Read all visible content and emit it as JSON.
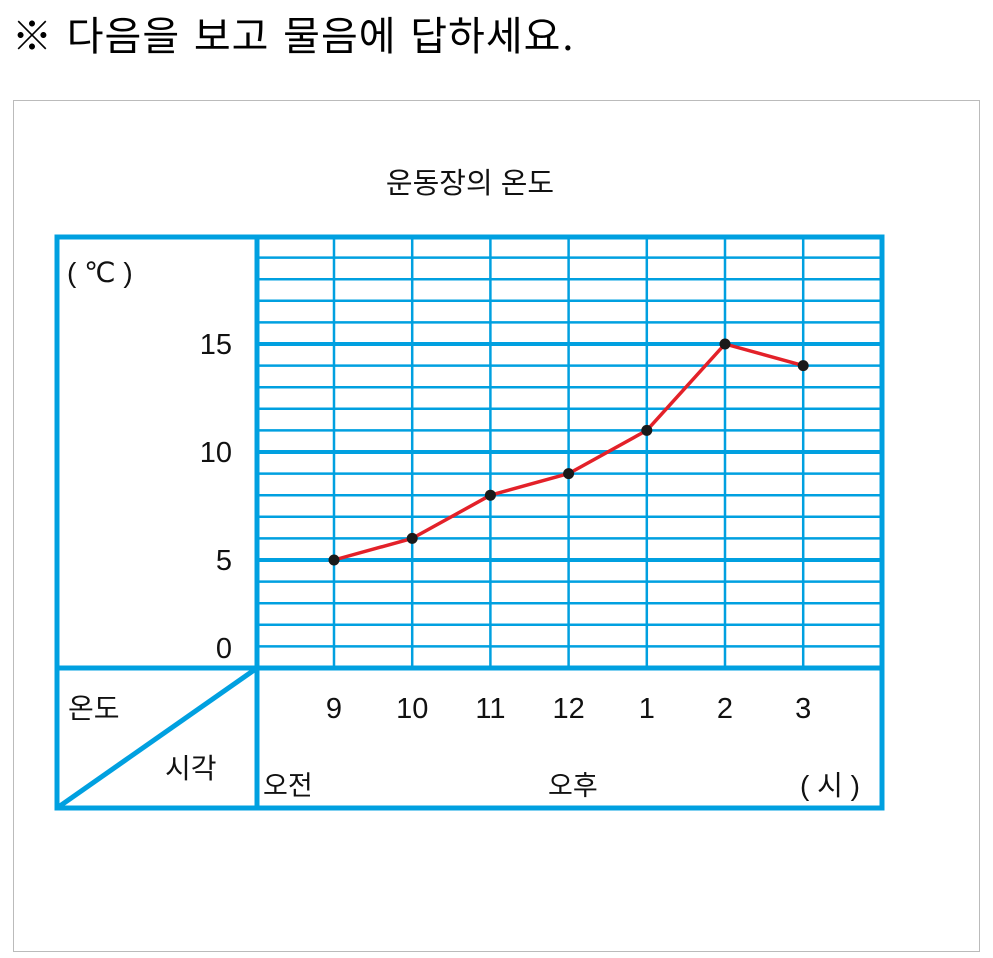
{
  "question": "※ 다음을 보고 물음에 답하세요.",
  "chart_data": {
    "type": "line",
    "title": "운동장의 온도",
    "ylabel": "( ℃ )",
    "corner_top": "온도",
    "corner_bottom": "시각",
    "categories": [
      "9",
      "10",
      "11",
      "12",
      "1",
      "2",
      "3"
    ],
    "values": [
      5,
      6,
      8,
      9,
      11,
      15,
      14
    ],
    "period_labels": {
      "am": "오전",
      "pm": "오후"
    },
    "x_unit": "( 시 )",
    "yticks": [
      0,
      5,
      10,
      15
    ],
    "ylim": [
      0,
      20
    ],
    "grid": true,
    "line_color": "#e32129",
    "grid_color": "#00a0e0",
    "point_color": "#1a1a1a"
  }
}
